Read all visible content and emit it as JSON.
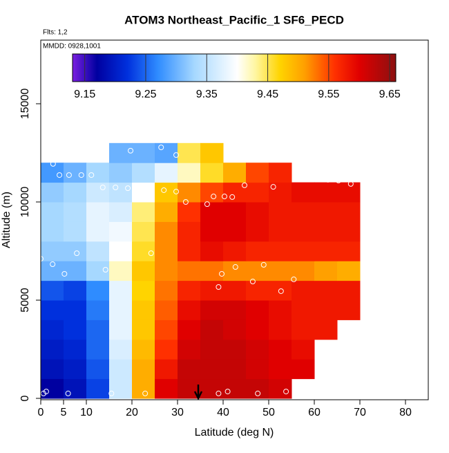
{
  "chart_data": {
    "type": "heatmap",
    "title": "ATOM3 Northeast_Pacific_1 SF6_PECD",
    "flights_label": "Flts: 1,2",
    "dates_label": "MMDD: 0928,1001",
    "xlabel": "Latitude (deg N)",
    "ylabel": "Altitude (m)",
    "xlim": [
      0,
      85
    ],
    "ylim": [
      -70,
      18240
    ],
    "xticks": [
      0,
      5,
      10,
      20,
      30,
      40,
      50,
      60,
      70,
      80
    ],
    "yticks": [
      0,
      5000,
      10000,
      15000
    ],
    "x_edges": [
      0,
      5,
      10,
      15,
      20,
      25,
      30,
      35,
      40,
      45,
      50,
      55,
      60,
      65,
      70,
      75
    ],
    "y_edges": [
      0,
      1000,
      2000,
      3000,
      4000,
      5000,
      6000,
      7000,
      8000,
      9000,
      10000,
      11000,
      12000,
      13000
    ],
    "z": [
      [
        9.17,
        9.19,
        9.23,
        9.36,
        9.5,
        9.6,
        9.62,
        9.62,
        9.62,
        9.62,
        9.61,
        null,
        null,
        null,
        null
      ],
      [
        9.19,
        9.2,
        9.24,
        9.36,
        9.5,
        9.58,
        9.62,
        9.62,
        9.62,
        9.61,
        9.6,
        9.6,
        null,
        null,
        null
      ],
      [
        9.2,
        9.21,
        9.25,
        9.37,
        9.49,
        9.56,
        9.61,
        9.62,
        9.62,
        9.61,
        9.6,
        9.59,
        null,
        null,
        null
      ],
      [
        9.21,
        9.22,
        9.25,
        9.38,
        9.48,
        9.55,
        9.6,
        9.62,
        9.61,
        9.6,
        9.59,
        9.58,
        9.58,
        null,
        null
      ],
      [
        9.22,
        9.22,
        9.26,
        9.38,
        9.48,
        9.54,
        9.59,
        9.61,
        9.61,
        9.6,
        9.59,
        9.58,
        9.58,
        9.58,
        null
      ],
      [
        9.24,
        9.23,
        9.27,
        9.38,
        9.47,
        9.53,
        9.57,
        9.58,
        9.58,
        9.57,
        9.57,
        9.58,
        9.58,
        9.58,
        null
      ],
      [
        9.3,
        9.3,
        9.33,
        9.42,
        9.48,
        9.52,
        9.53,
        9.53,
        9.52,
        9.52,
        9.52,
        9.52,
        9.51,
        9.5,
        null
      ],
      [
        9.32,
        9.32,
        9.35,
        9.4,
        9.46,
        9.52,
        9.57,
        9.59,
        9.58,
        9.57,
        9.57,
        9.57,
        9.57,
        9.57,
        null
      ],
      [
        9.33,
        9.34,
        9.38,
        9.39,
        9.45,
        9.52,
        9.57,
        9.6,
        9.6,
        9.59,
        9.58,
        9.58,
        9.58,
        9.58,
        null
      ],
      [
        9.33,
        9.34,
        9.38,
        9.37,
        9.44,
        9.5,
        9.56,
        9.6,
        9.6,
        9.59,
        9.58,
        9.58,
        9.58,
        9.58,
        null
      ],
      [
        9.32,
        9.33,
        9.36,
        9.35,
        9.4,
        9.48,
        9.52,
        9.55,
        9.57,
        9.57,
        9.58,
        9.59,
        9.59,
        9.59,
        null
      ],
      [
        9.28,
        9.3,
        9.33,
        9.32,
        9.34,
        9.38,
        9.42,
        9.46,
        9.5,
        9.55,
        9.57,
        null,
        null,
        null,
        null
      ],
      [
        null,
        null,
        null,
        9.3,
        9.3,
        9.29,
        9.45,
        9.48,
        null,
        null,
        null,
        null,
        null,
        null,
        null
      ]
    ],
    "colormap": {
      "range": [
        9.13,
        9.66
      ],
      "stops": [
        [
          9.13,
          "#7a1fe0"
        ],
        [
          9.17,
          "#0000a0"
        ],
        [
          9.22,
          "#0030dd"
        ],
        [
          9.27,
          "#2f8cff"
        ],
        [
          9.33,
          "#a6d8ff"
        ],
        [
          9.4,
          "#ffffff"
        ],
        [
          9.43,
          "#fff6a0"
        ],
        [
          9.47,
          "#ffd400"
        ],
        [
          9.51,
          "#ffa000"
        ],
        [
          9.56,
          "#ff3000"
        ],
        [
          9.6,
          "#e00000"
        ],
        [
          9.66,
          "#8b1010"
        ]
      ]
    },
    "colorbar_ticks": [
      9.15,
      9.25,
      9.35,
      9.45,
      9.55,
      9.65
    ],
    "points": {
      "x": [
        0.6,
        1.2,
        6,
        15.5,
        22.9,
        39,
        41,
        47.6,
        53.8,
        52.7,
        55.5,
        46.5,
        39,
        39.7,
        42.7,
        48.9,
        2.6,
        5.2,
        7.9,
        14.2,
        24.2,
        0,
        31.8,
        36.5,
        37.9,
        40.3,
        42,
        27,
        29.7,
        44.7,
        51,
        13.6,
        16.4,
        19.1,
        21.7,
        24.2,
        4.1,
        6.2,
        8.9,
        11.1,
        2.7,
        58.3,
        60.6,
        63,
        65.3,
        68,
        19.7,
        26.4,
        29.7
      ],
      "y": [
        250,
        350,
        250,
        250,
        250,
        250,
        350,
        250,
        350,
        5460,
        6060,
        5950,
        5670,
        6340,
        6690,
        6800,
        6830,
        6340,
        7390,
        6550,
        7390,
        7110,
        10000,
        9890,
        10280,
        10280,
        10250,
        10600,
        10530,
        10850,
        10770,
        10740,
        10740,
        10700,
        10700,
        10740,
        11370,
        11370,
        11370,
        11370,
        11940,
        11270,
        11200,
        11130,
        11090,
        10920,
        12610,
        12780,
        12390
      ]
    }
  }
}
